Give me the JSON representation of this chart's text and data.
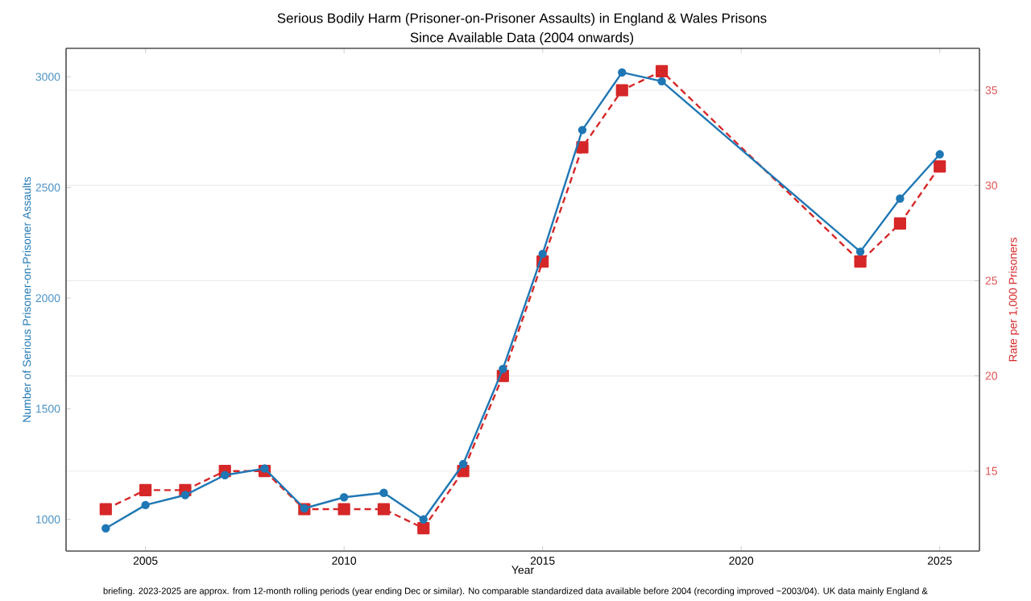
{
  "chart_data": {
    "type": "line",
    "title": "Serious Bodily Harm (Prisoner-on-Prisoner Assaults) in England & Wales Prisons",
    "subtitle": "Since Available Data (2004 onwards)",
    "xlabel": "Year",
    "ylabel": "Number of Serious Prisoner-on-Prisoner Assaults",
    "y2label": "Rate per 1,000 Prisoners",
    "x": [
      2004,
      2005,
      2006,
      2007,
      2008,
      2009,
      2010,
      2011,
      2012,
      2013,
      2014,
      2015,
      2016,
      2017,
      2018,
      2023,
      2024,
      2025
    ],
    "series": [
      {
        "color": "#1f77b4",
        "marker": "circle",
        "line_style": "solid",
        "values": [
          960,
          1065,
          1110,
          1200,
          1230,
          1050,
          1100,
          1120,
          1000,
          1250,
          1680,
          2200,
          2760,
          3020,
          2980,
          2210,
          2450,
          2650
        ]
      },
      {
        "color": "#d62728",
        "marker": "square",
        "line_style": "dashed",
        "axis": "y2",
        "values": [
          13,
          14,
          14,
          15,
          15,
          13,
          13,
          13,
          12,
          15,
          20,
          26,
          32,
          35,
          36,
          26,
          28,
          31
        ]
      }
    ],
    "xlim": [
      2003,
      2026
    ],
    "xticks": [
      2005,
      2010,
      2015,
      2020,
      2025
    ],
    "ylim": [
      857,
      3129
    ],
    "yticks": [
      1000,
      1500,
      2000,
      2500,
      3000
    ],
    "y2lim": [
      10.8,
      37.2
    ],
    "y2ticks": [
      15,
      20,
      25,
      30,
      35
    ],
    "grid": "y",
    "annotations": [
      "briefing. 2023-2025 are approx. from 12-month rolling periods (year ending Dec or similar). No comparable standardized data available before 2004 (recording improved ~2003/04). UK data mainly England &"
    ]
  }
}
